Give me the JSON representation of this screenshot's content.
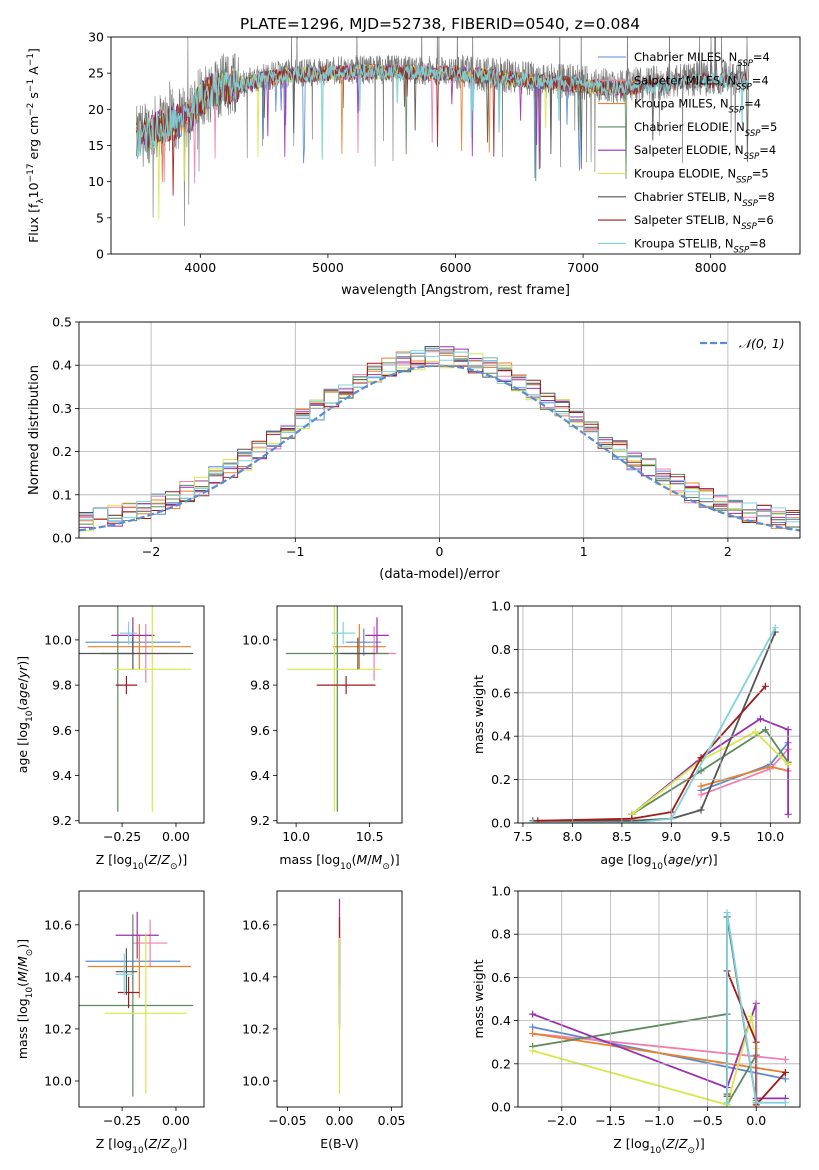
{
  "figure_title": "PLATE=1296, MJD=52738, FIBERID=0540, z=0.084",
  "colors": {
    "c1": "#5b8bd0",
    "c2": "#f07fb0",
    "c3": "#e8812e",
    "c4": "#5e8a5e",
    "c5": "#9a2fb0",
    "c6": "#d6e84a",
    "c7": "#555555",
    "c8": "#a01c1c",
    "c9": "#7fd4dc",
    "normal": "#5b8bd0",
    "grid": "#b0b0b0"
  },
  "legend_spectrum": [
    {
      "label": "Chabrier MILES, N",
      "sub": "SSP",
      "suffix": "=4",
      "color": "c1"
    },
    {
      "label": "Salpeter MILES, N",
      "sub": "SSP",
      "suffix": "=4",
      "color": "c2"
    },
    {
      "label": "Kroupa MILES, N",
      "sub": "SSP",
      "suffix": "=4",
      "color": "c3"
    },
    {
      "label": "Chabrier ELODIE, N",
      "sub": "SSP",
      "suffix": "=5",
      "color": "c4"
    },
    {
      "label": "Salpeter ELODIE, N",
      "sub": "SSP",
      "suffix": "=4",
      "color": "c5"
    },
    {
      "label": "Kroupa ELODIE, N",
      "sub": "SSP",
      "suffix": "=5",
      "color": "c6"
    },
    {
      "label": "Chabrier STELIB, N",
      "sub": "SSP",
      "suffix": "=8",
      "color": "c7"
    },
    {
      "label": "Salpeter STELIB, N",
      "sub": "SSP",
      "suffix": "=6",
      "color": "c8"
    },
    {
      "label": "Kroupa STELIB, N",
      "sub": "SSP",
      "suffix": "=8",
      "color": "c9"
    }
  ],
  "chart_data": [
    {
      "id": "spectrum",
      "type": "line",
      "xlabel": "wavelength [Angstrom, rest frame]",
      "ylabel": "Flux [fλ10⁻¹⁷ erg cm⁻² s⁻¹ A⁻¹]",
      "xlim": [
        3300,
        8700
      ],
      "ylim": [
        0,
        30
      ],
      "xticks": [
        4000,
        5000,
        6000,
        7000,
        8000
      ],
      "yticks": [
        0,
        5,
        10,
        15,
        20,
        25,
        30
      ],
      "data_range": [
        3500,
        8300
      ],
      "envelope_wavelength": [
        3500,
        3600,
        3700,
        3800,
        3900,
        4000,
        4100,
        4200,
        4300,
        4500,
        4700,
        5000,
        5300,
        5600,
        6000,
        6300,
        6600,
        6900,
        7200,
        7500,
        7800,
        8300
      ],
      "envelope_flux": [
        16,
        17,
        18,
        18.5,
        19,
        21.5,
        23,
        23.5,
        23.5,
        24.5,
        25,
        25.3,
        25.5,
        25.5,
        25.2,
        24.8,
        24.2,
        23.8,
        23.2,
        23.5,
        24.2,
        24.5
      ],
      "legend_position": "right",
      "grid": false
    },
    {
      "id": "residuals",
      "type": "step",
      "xlabel": "(data-model)/error",
      "ylabel": "Normed distribution",
      "xlim": [
        -2.5,
        2.5
      ],
      "ylim": [
        0,
        0.5
      ],
      "xticks": [
        -2,
        -1,
        0,
        1,
        2
      ],
      "yticks": [
        0.0,
        0.1,
        0.2,
        0.3,
        0.4,
        0.5
      ],
      "bin_width": 0.1,
      "legend": "𝒩(0, 1)",
      "legend_position": "top-right",
      "grid": true
    },
    {
      "id": "age-vs-Z",
      "type": "errorbar",
      "xlabel": "Z [log10(Z/Z⊙)]",
      "ylabel": "age  [log10(age/yr)]",
      "xlim": [
        -0.45,
        0.13
      ],
      "ylim": [
        9.19,
        10.15
      ],
      "xticks": [
        -0.25,
        0.0
      ],
      "xticklabels": [
        "−0.25",
        "0.00"
      ],
      "yticks": [
        9.2,
        9.4,
        9.6,
        9.8,
        10.0
      ],
      "points": [
        {
          "x": -0.2,
          "y": 9.99,
          "xerr": 0.22,
          "yerr": 0.06,
          "color": "c1"
        },
        {
          "x": -0.14,
          "y": 9.94,
          "xerr": 0.1,
          "yerr": 0.13,
          "color": "c2"
        },
        {
          "x": -0.17,
          "y": 9.97,
          "xerr": 0.24,
          "yerr": 0.1,
          "color": "c3"
        },
        {
          "x": -0.27,
          "y": 9.94,
          "xerr": 0.08,
          "yerr": 0.7,
          "color": "c4"
        },
        {
          "x": -0.2,
          "y": 10.02,
          "xerr": 0.1,
          "yerr": 0.08,
          "color": "c5"
        },
        {
          "x": -0.11,
          "y": 9.87,
          "xerr": 0.18,
          "yerr": 0.63,
          "color": "c6"
        },
        {
          "x": -0.2,
          "y": 9.94,
          "xerr": 0.28,
          "yerr": 0.07,
          "color": "c7"
        },
        {
          "x": -0.23,
          "y": 9.8,
          "xerr": 0.05,
          "yerr": 0.04,
          "color": "c8"
        },
        {
          "x": -0.22,
          "y": 10.03,
          "xerr": 0.04,
          "yerr": 0.05,
          "color": "c9"
        }
      ]
    },
    {
      "id": "age-vs-mass",
      "type": "errorbar",
      "xlabel": "mass [log10(M/M⊙)]",
      "ylabel": "",
      "xlim": [
        9.87,
        10.72
      ],
      "ylim": [
        9.19,
        10.15
      ],
      "xticks": [
        10.0,
        10.5
      ],
      "xticklabels": [
        "10.0",
        "10.5"
      ],
      "yticks": [
        9.2,
        9.4,
        9.6,
        9.8,
        10.0
      ],
      "points": [
        {
          "x": 10.46,
          "y": 9.99,
          "xerr": 0.12,
          "yerr": 0.06,
          "color": "c1"
        },
        {
          "x": 10.53,
          "y": 9.94,
          "xerr": 0.15,
          "yerr": 0.12,
          "color": "c2"
        },
        {
          "x": 10.43,
          "y": 9.97,
          "xerr": 0.18,
          "yerr": 0.1,
          "color": "c3"
        },
        {
          "x": 10.28,
          "y": 9.94,
          "xerr": 0.35,
          "yerr": 0.7,
          "color": "c4"
        },
        {
          "x": 10.55,
          "y": 10.02,
          "xerr": 0.08,
          "yerr": 0.08,
          "color": "c5"
        },
        {
          "x": 10.26,
          "y": 9.87,
          "xerr": 0.32,
          "yerr": 0.63,
          "color": "c6"
        },
        {
          "x": 10.42,
          "y": 9.94,
          "xerr": 0.12,
          "yerr": 0.07,
          "color": "c7"
        },
        {
          "x": 10.34,
          "y": 9.8,
          "xerr": 0.2,
          "yerr": 0.04,
          "color": "c8"
        },
        {
          "x": 10.32,
          "y": 10.03,
          "xerr": 0.08,
          "yerr": 0.05,
          "color": "c9"
        }
      ]
    },
    {
      "id": "weight-vs-age",
      "type": "line",
      "xlabel": "age  [log10(age/yr)]",
      "ylabel": "mass weight",
      "xlim": [
        7.45,
        10.3
      ],
      "ylim": [
        0,
        1.0
      ],
      "xticks": [
        7.5,
        8.0,
        8.5,
        9.0,
        9.5,
        10.0
      ],
      "xticklabels": [
        "7.5",
        "8.0",
        "8.5",
        "9.0",
        "9.5",
        "10.0"
      ],
      "yticks": [
        0.0,
        0.2,
        0.4,
        0.6,
        0.8,
        1.0
      ],
      "series": [
        {
          "color": "c1",
          "x": [
            9.3,
            10.0,
            10.18
          ],
          "y": [
            0.15,
            0.27,
            0.37
          ]
        },
        {
          "color": "c2",
          "x": [
            9.3,
            10.0,
            10.18
          ],
          "y": [
            0.13,
            0.25,
            0.34
          ]
        },
        {
          "color": "c3",
          "x": [
            9.3,
            10.0,
            10.18
          ],
          "y": [
            0.17,
            0.26,
            0.24
          ]
        },
        {
          "color": "c4",
          "x": [
            8.6,
            9.3,
            9.95,
            10.18
          ],
          "y": [
            0.04,
            0.24,
            0.43,
            0.28
          ]
        },
        {
          "color": "c5",
          "x": [
            8.6,
            9.3,
            9.9,
            10.18,
            10.18
          ],
          "y": [
            0.04,
            0.3,
            0.48,
            0.43,
            0.04
          ]
        },
        {
          "color": "c6",
          "x": [
            8.6,
            9.3,
            9.85,
            10.18
          ],
          "y": [
            0.04,
            0.29,
            0.42,
            0.27
          ]
        },
        {
          "color": "c7",
          "x": [
            7.6,
            8.6,
            9.0,
            9.3,
            10.05
          ],
          "y": [
            0.01,
            0.01,
            0.02,
            0.06,
            0.88
          ]
        },
        {
          "color": "c8",
          "x": [
            7.65,
            8.6,
            9.0,
            9.3,
            9.95
          ],
          "y": [
            0.01,
            0.02,
            0.05,
            0.3,
            0.63
          ]
        },
        {
          "color": "c9",
          "x": [
            7.6,
            8.6,
            9.0,
            10.05
          ],
          "y": [
            0.0,
            0.0,
            0.02,
            0.9
          ]
        }
      ],
      "grid": true
    },
    {
      "id": "mass-vs-Z",
      "type": "errorbar",
      "xlabel": "Z [log10(Z/Z⊙)]",
      "ylabel": "mass [log10(M/M⊙)]",
      "xlim": [
        -0.45,
        0.13
      ],
      "ylim": [
        9.9,
        10.73
      ],
      "xticks": [
        -0.25,
        0.0
      ],
      "xticklabels": [
        "−0.25",
        "0.00"
      ],
      "yticks": [
        10.0,
        10.2,
        10.4,
        10.6
      ],
      "points": [
        {
          "x": -0.2,
          "y": 10.46,
          "xerr": 0.22,
          "yerr": 0.1,
          "color": "c1"
        },
        {
          "x": -0.12,
          "y": 10.53,
          "xerr": 0.08,
          "yerr": 0.09,
          "color": "c2"
        },
        {
          "x": -0.17,
          "y": 10.44,
          "xerr": 0.24,
          "yerr": 0.12,
          "color": "c3"
        },
        {
          "x": -0.2,
          "y": 10.29,
          "xerr": 0.28,
          "yerr": 0.35,
          "color": "c4"
        },
        {
          "x": -0.18,
          "y": 10.56,
          "xerr": 0.1,
          "yerr": 0.09,
          "color": "c5"
        },
        {
          "x": -0.14,
          "y": 10.26,
          "xerr": 0.19,
          "yerr": 0.31,
          "color": "c6"
        },
        {
          "x": -0.23,
          "y": 10.42,
          "xerr": 0.05,
          "yerr": 0.09,
          "color": "c7"
        },
        {
          "x": -0.22,
          "y": 10.34,
          "xerr": 0.05,
          "yerr": 0.06,
          "color": "c8"
        },
        {
          "x": -0.24,
          "y": 10.41,
          "xerr": 0.04,
          "yerr": 0.08,
          "color": "c9"
        }
      ]
    },
    {
      "id": "mass-vs-EBV",
      "type": "errorbar",
      "xlabel": "E(B-V)",
      "ylabel": "",
      "xlim": [
        -0.06,
        0.06
      ],
      "ylim": [
        9.9,
        10.73
      ],
      "xticks": [
        -0.05,
        0.0,
        0.05
      ],
      "xticklabels": [
        "−0.05",
        "0.00",
        "0.05"
      ],
      "yticks": [
        10.0,
        10.2,
        10.4,
        10.6
      ],
      "points": [
        {
          "x": 0.0,
          "y": 10.42,
          "xerr": 0.0,
          "yerr": 0.2,
          "color": "c2"
        },
        {
          "x": 0.0,
          "y": 10.45,
          "xerr": 0.0,
          "yerr": 0.25,
          "color": "c5"
        },
        {
          "x": 0.0,
          "y": 10.5,
          "xerr": 0.0,
          "yerr": 0.13,
          "color": "c8"
        },
        {
          "x": 0.0,
          "y": 10.38,
          "xerr": 0.0,
          "yerr": 0.16,
          "color": "c7"
        },
        {
          "x": 0.0,
          "y": 10.25,
          "xerr": 0.0,
          "yerr": 0.3,
          "color": "c6"
        }
      ]
    },
    {
      "id": "weight-vs-Z",
      "type": "line",
      "xlabel": "Z [log10(Z/Z⊙)]",
      "ylabel": "mass weight",
      "xlim": [
        -2.45,
        0.45
      ],
      "ylim": [
        0,
        1.0
      ],
      "xticks": [
        -2.0,
        -1.5,
        -1.0,
        -0.5,
        0.0
      ],
      "xticklabels": [
        "−2.0",
        "−1.5",
        "−1.0",
        "−0.5",
        "0.0"
      ],
      "yticks": [
        0.0,
        0.2,
        0.4,
        0.6,
        0.8,
        1.0
      ],
      "series": [
        {
          "color": "c1",
          "x": [
            -2.3,
            0.3
          ],
          "y": [
            0.37,
            0.13
          ]
        },
        {
          "color": "c2",
          "x": [
            -2.3,
            0.3
          ],
          "y": [
            0.34,
            0.22
          ]
        },
        {
          "color": "c3",
          "x": [
            -2.3,
            0.3
          ],
          "y": [
            0.34,
            0.16
          ]
        },
        {
          "color": "c4",
          "x": [
            -2.3,
            -0.3,
            -0.3,
            0.0,
            0.0
          ],
          "y": [
            0.28,
            0.43,
            0.01,
            0.24,
            0.03
          ]
        },
        {
          "color": "c5",
          "x": [
            -2.3,
            -0.3,
            0.0,
            0.0,
            0.3
          ],
          "y": [
            0.43,
            0.09,
            0.48,
            0.04,
            0.04
          ]
        },
        {
          "color": "c6",
          "x": [
            -2.3,
            -0.3,
            -0.05,
            0.0
          ],
          "y": [
            0.26,
            0.01,
            0.42,
            0.27
          ]
        },
        {
          "color": "c7",
          "x": [
            -0.3,
            -0.3,
            0.0,
            0.0
          ],
          "y": [
            0.06,
            0.88,
            0.02,
            0.02
          ]
        },
        {
          "color": "c8",
          "x": [
            -0.3,
            -0.3,
            0.0,
            0.0,
            0.3
          ],
          "y": [
            0.05,
            0.63,
            0.3,
            0.01,
            0.16
          ]
        },
        {
          "color": "c9",
          "x": [
            -0.3,
            -0.3,
            0.0,
            0.3
          ],
          "y": [
            0.02,
            0.9,
            0.02,
            0.02
          ]
        }
      ],
      "grid": true
    }
  ]
}
